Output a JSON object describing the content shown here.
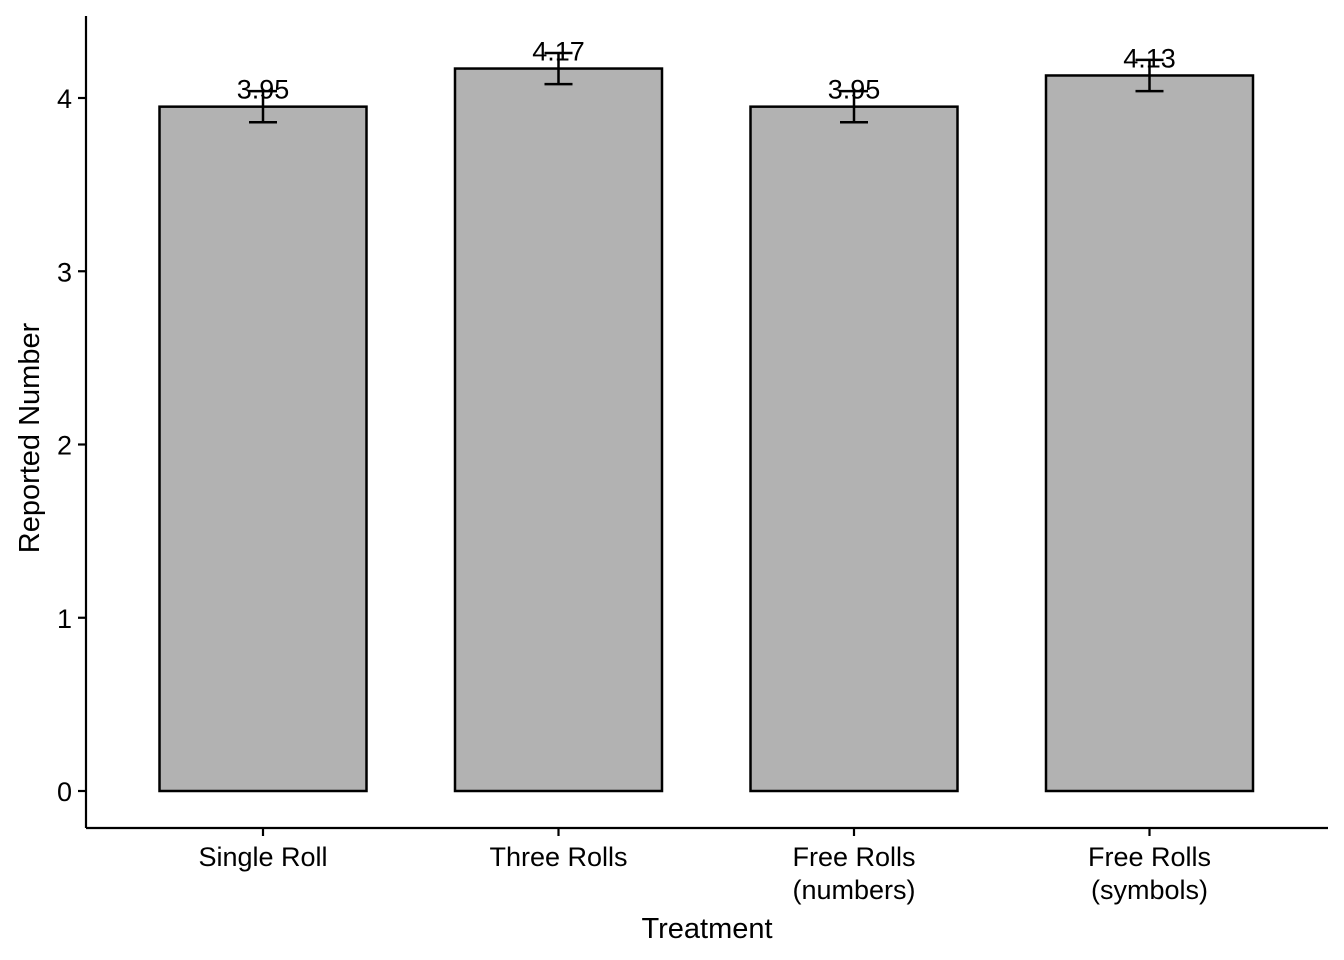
{
  "chart_data": {
    "type": "bar",
    "categories": [
      [
        "Single Roll"
      ],
      [
        "Three Rolls"
      ],
      [
        "Free Rolls",
        "(numbers)"
      ],
      [
        "Free Rolls",
        "(symbols)"
      ]
    ],
    "values": [
      3.95,
      4.17,
      3.95,
      4.13
    ],
    "data_labels": [
      "3.95",
      "4.17",
      "3.95",
      "4.13"
    ],
    "error_low": [
      3.86,
      4.08,
      3.86,
      4.04
    ],
    "error_high": [
      4.04,
      4.26,
      4.04,
      4.22
    ],
    "xlabel": "Treatment",
    "ylabel": "Reported Number",
    "ylim": [
      -0.21,
      4.45
    ],
    "yticks": [
      0,
      1,
      2,
      3,
      4
    ],
    "grid": false,
    "legend": "none",
    "bar_fill": "#b2b2b2",
    "bar_outline": "#000000"
  }
}
